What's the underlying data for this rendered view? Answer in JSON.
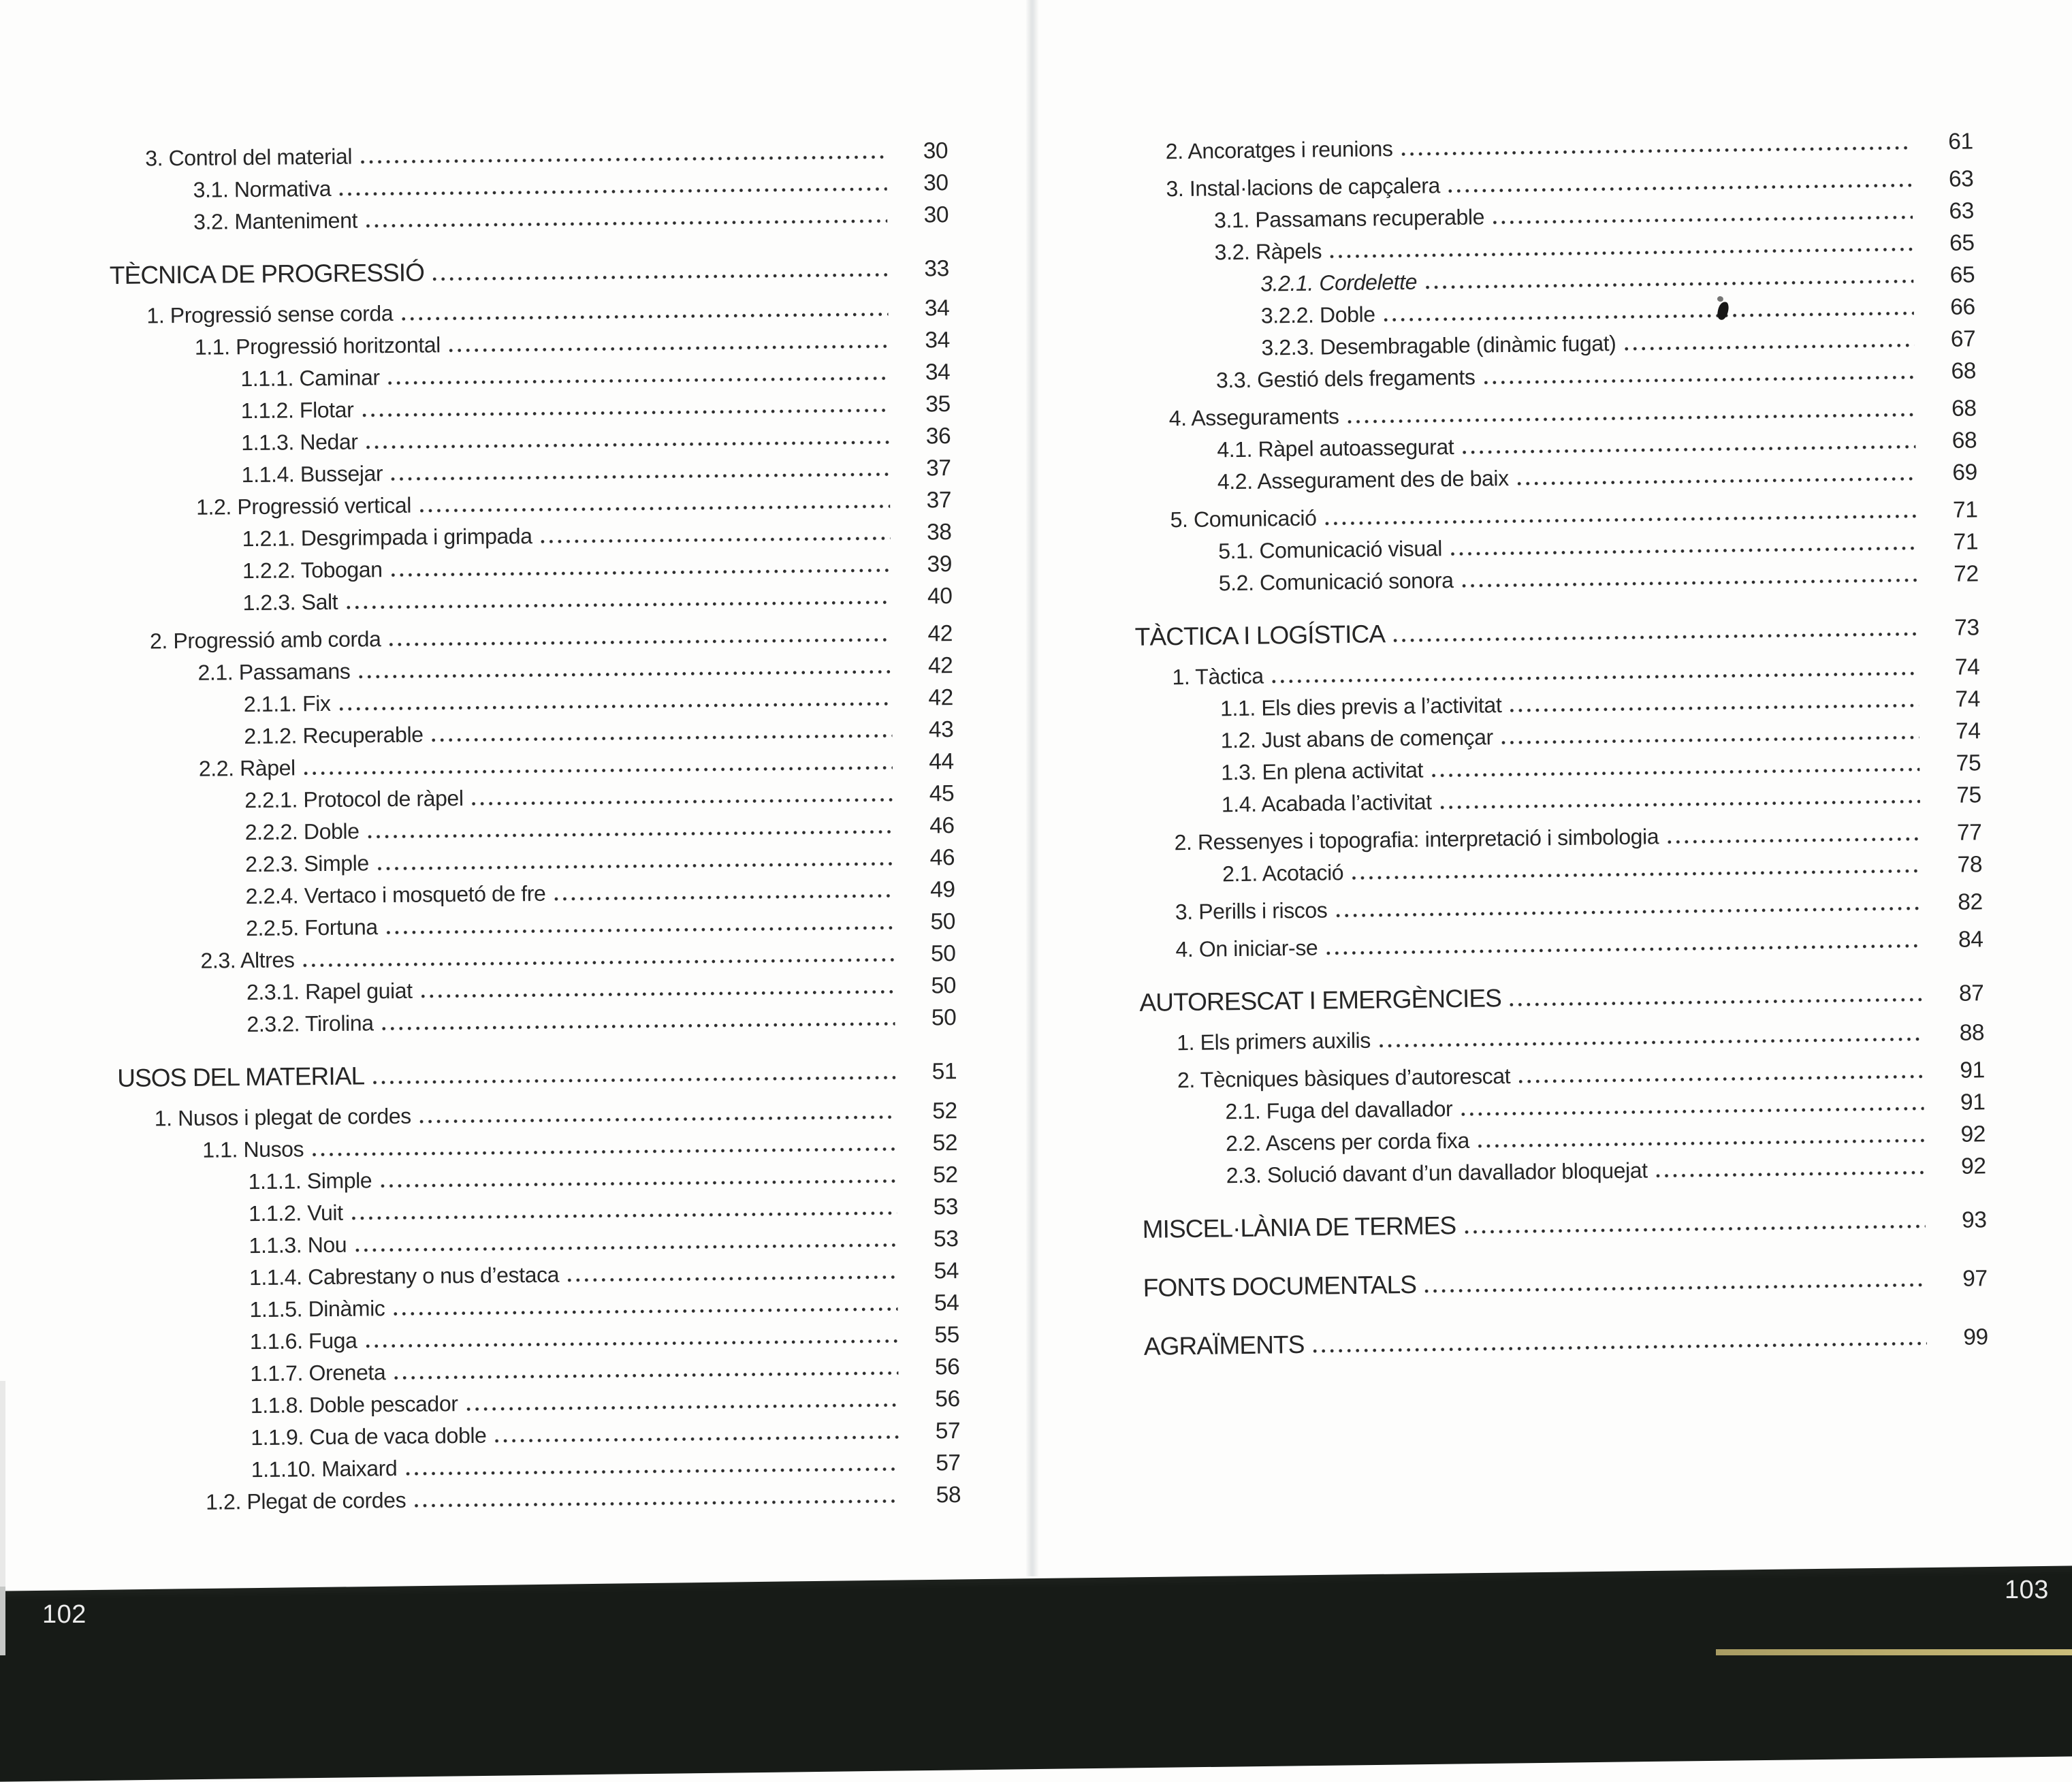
{
  "left_page": {
    "page_number": "102",
    "entries": [
      {
        "level": "1",
        "label": "3. Control del material",
        "page": "30"
      },
      {
        "level": "2",
        "label": "3.1. Normativa",
        "page": "30"
      },
      {
        "level": "2",
        "label": "3.2. Manteniment",
        "page": "30"
      },
      {
        "level": "h",
        "label": "TÈCNICA DE PROGRESSIÓ",
        "page": "33"
      },
      {
        "level": "1",
        "label": "1. Progressió sense corda",
        "page": "34"
      },
      {
        "level": "2",
        "label": "1.1. Progressió horitzontal",
        "page": "34"
      },
      {
        "level": "3",
        "label": "1.1.1. Caminar",
        "page": "34"
      },
      {
        "level": "3",
        "label": "1.1.2. Flotar",
        "page": "35"
      },
      {
        "level": "3",
        "label": "1.1.3. Nedar",
        "page": "36"
      },
      {
        "level": "3",
        "label": "1.1.4. Bussejar",
        "page": "37"
      },
      {
        "level": "2",
        "label": "1.2. Progressió vertical",
        "page": "37"
      },
      {
        "level": "3",
        "label": "1.2.1. Desgrimpada i grimpada",
        "page": "38"
      },
      {
        "level": "3",
        "label": "1.2.2. Tobogan",
        "page": "39"
      },
      {
        "level": "3",
        "label": "1.2.3. Salt",
        "page": "40"
      },
      {
        "level": "1",
        "label": "2. Progressió amb corda",
        "page": "42"
      },
      {
        "level": "2",
        "label": "2.1. Passamans",
        "page": "42"
      },
      {
        "level": "3",
        "label": "2.1.1. Fix",
        "page": "42"
      },
      {
        "level": "3",
        "label": "2.1.2. Recuperable",
        "page": "43"
      },
      {
        "level": "2",
        "label": "2.2. Ràpel",
        "page": "44"
      },
      {
        "level": "3",
        "label": "2.2.1. Protocol de ràpel",
        "page": "45"
      },
      {
        "level": "3",
        "label": "2.2.2. Doble",
        "page": "46"
      },
      {
        "level": "3",
        "label": "2.2.3. Simple",
        "page": "46"
      },
      {
        "level": "3",
        "label": "2.2.4. Vertaco i mosquetó de fre",
        "page": "49"
      },
      {
        "level": "3",
        "label": "2.2.5. Fortuna",
        "page": "50"
      },
      {
        "level": "2",
        "label": "2.3. Altres",
        "page": "50"
      },
      {
        "level": "3",
        "label": "2.3.1. Rapel guiat",
        "page": "50"
      },
      {
        "level": "3",
        "label": "2.3.2. Tirolina",
        "page": "50"
      },
      {
        "level": "h",
        "label": "USOS DEL MATERIAL",
        "page": "51"
      },
      {
        "level": "1",
        "label": "1. Nusos i plegat de cordes",
        "page": "52"
      },
      {
        "level": "2",
        "label": "1.1. Nusos",
        "page": "52"
      },
      {
        "level": "3",
        "label": "1.1.1. Simple",
        "page": "52"
      },
      {
        "level": "3",
        "label": "1.1.2. Vuit",
        "page": "53"
      },
      {
        "level": "3",
        "label": "1.1.3. Nou",
        "page": "53"
      },
      {
        "level": "3",
        "label": "1.1.4. Cabrestany o nus d’estaca",
        "page": "54"
      },
      {
        "level": "3",
        "label": "1.1.5. Dinàmic",
        "page": "54"
      },
      {
        "level": "3",
        "label": "1.1.6. Fuga",
        "page": "55"
      },
      {
        "level": "3",
        "label": "1.1.7. Oreneta",
        "page": "56"
      },
      {
        "level": "3",
        "label": "1.1.8. Doble pescador",
        "page": "56"
      },
      {
        "level": "3",
        "label": "1.1.9. Cua de vaca doble",
        "page": "57"
      },
      {
        "level": "3",
        "label": "1.1.10. Maixard",
        "page": "57"
      },
      {
        "level": "2",
        "label": "1.2. Plegat de cordes",
        "page": "58"
      }
    ]
  },
  "right_page": {
    "page_number": "103",
    "entries": [
      {
        "level": "1",
        "label": "2. Ancoratges i reunions",
        "page": "61"
      },
      {
        "level": "1",
        "label": "3. Instal·lacions de capçalera",
        "page": "63"
      },
      {
        "level": "2",
        "label": "3.1. Passamans recuperable",
        "page": "63"
      },
      {
        "level": "2",
        "label": "3.2. Ràpels",
        "page": "65"
      },
      {
        "level": "3",
        "label": "3.2.1. Cordelette",
        "page": "65",
        "italic": true
      },
      {
        "level": "3",
        "label": "3.2.2. Doble",
        "page": "66"
      },
      {
        "level": "3",
        "label": "3.2.3. Desembragable (dinàmic fugat)",
        "page": "67"
      },
      {
        "level": "2",
        "label": "3.3. Gestió dels fregaments",
        "page": "68"
      },
      {
        "level": "1",
        "label": "4. Asseguraments",
        "page": "68"
      },
      {
        "level": "2",
        "label": "4.1. Ràpel autoassegurat",
        "page": "68"
      },
      {
        "level": "2",
        "label": "4.2. Assegurament des de baix",
        "page": "69"
      },
      {
        "level": "1",
        "label": "5. Comunicació",
        "page": "71"
      },
      {
        "level": "2",
        "label": "5.1. Comunicació visual",
        "page": "71"
      },
      {
        "level": "2",
        "label": "5.2. Comunicació sonora",
        "page": "72"
      },
      {
        "level": "h",
        "label": "TÀCTICA I LOGÍSTICA",
        "page": "73"
      },
      {
        "level": "1",
        "label": "1. Tàctica",
        "page": "74"
      },
      {
        "level": "2",
        "label": "1.1. Els dies previs a l’activitat",
        "page": "74"
      },
      {
        "level": "2",
        "label": "1.2. Just abans de començar",
        "page": "74"
      },
      {
        "level": "2",
        "label": "1.3. En plena activitat",
        "page": "75"
      },
      {
        "level": "2",
        "label": "1.4. Acabada l’activitat",
        "page": "75"
      },
      {
        "level": "1",
        "label": "2. Ressenyes i topografia: interpretació i simbologia",
        "page": "77"
      },
      {
        "level": "2",
        "label": "2.1. Acotació",
        "page": "78"
      },
      {
        "level": "1",
        "label": "3. Perills i riscos",
        "page": "82"
      },
      {
        "level": "1",
        "label": "4. On iniciar-se",
        "page": "84"
      },
      {
        "level": "h",
        "label": "AUTORESCAT I EMERGÈNCIES",
        "page": "87"
      },
      {
        "level": "1",
        "label": "1. Els primers auxilis",
        "page": "88"
      },
      {
        "level": "1",
        "label": "2. Tècniques bàsiques d’autorescat",
        "page": "91"
      },
      {
        "level": "2",
        "label": "2.1. Fuga del davallador",
        "page": "91"
      },
      {
        "level": "2",
        "label": "2.2. Ascens per corda fixa",
        "page": "92"
      },
      {
        "level": "2",
        "label": "2.3. Solució davant d’un davallador bloquejat",
        "page": "92"
      },
      {
        "level": "h",
        "label": "MISCEL·LÀNIA DE TERMES",
        "page": "93"
      },
      {
        "level": "h",
        "label": "FONTS DOCUMENTALS",
        "page": "97"
      },
      {
        "level": "h",
        "label": "AGRAÏMENTS",
        "page": "99"
      }
    ]
  },
  "colors": {
    "ink": "#262626",
    "page_background": "#fdfdfc",
    "footer_band": "#171b17",
    "footer_text": "#ececec",
    "deckle_strip": "#b7a96b"
  }
}
